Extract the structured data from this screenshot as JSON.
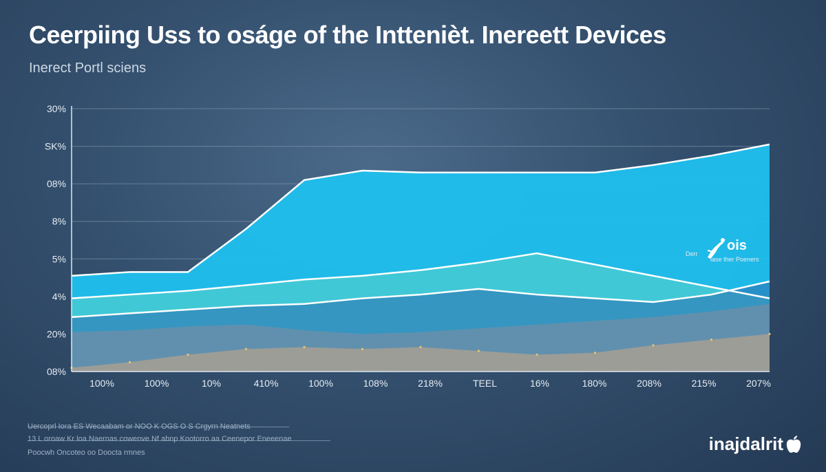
{
  "title": "Ceerpiing Uss to oságe of the Inttenièt. Inereett Devices",
  "subtitle": "Inerect Portl sciens",
  "chart_data": {
    "type": "area",
    "title": "Ceerpiing Uss to oságe of the Inttenièt. Inereett Devices",
    "subtitle": "Inerect Portl sciens",
    "y_tick_labels": [
      "30%",
      "SK%",
      "08%",
      "8%",
      "5%",
      "4%",
      "20%",
      "08%"
    ],
    "x_tick_labels": [
      "100%",
      "100%",
      "10%",
      "410%",
      "100%",
      "108%",
      "218%",
      "TEEL",
      "16%",
      "180%",
      "208%",
      "215%",
      "207%"
    ],
    "y_range": [
      0,
      7
    ],
    "grid": true,
    "legend": {
      "label": "ois",
      "small_left": "Derr",
      "small_right": "lase ther Poeners"
    },
    "series": [
      {
        "color": "#1fc0ee",
        "values": [
          2.55,
          2.65,
          2.65,
          3.8,
          5.1,
          5.35,
          5.3,
          5.3,
          5.3,
          5.3,
          5.5,
          5.75,
          6.05
        ]
      },
      {
        "color": "#55d0cc",
        "values": [
          1.95,
          2.05,
          2.15,
          2.3,
          2.45,
          2.55,
          2.7,
          2.9,
          3.15,
          2.85,
          2.55,
          2.25,
          1.95
        ]
      },
      {
        "color": "#2f78b4",
        "values": [
          1.45,
          1.55,
          1.65,
          1.75,
          1.8,
          1.95,
          2.05,
          2.2,
          2.05,
          1.95,
          1.85,
          2.05,
          2.4
        ]
      },
      {
        "color": "#7c8da3",
        "values": [
          1.05,
          1.1,
          1.2,
          1.25,
          1.1,
          1.0,
          1.05,
          1.15,
          1.25,
          1.35,
          1.45,
          1.6,
          1.8
        ]
      },
      {
        "color": "#c0a489",
        "values": [
          0.1,
          0.25,
          0.45,
          0.6,
          0.65,
          0.6,
          0.65,
          0.55,
          0.45,
          0.5,
          0.7,
          0.85,
          1.0
        ]
      }
    ]
  },
  "footer": {
    "line1": "Uercoprl Iora ES Wecaabam or NOO K OGS O S Crgyrn Neatnets",
    "line2": "13 L oroaw Kr loa Naernas cowenve Nf abnp Kootorro aa Ceenepor Eneeenae",
    "line3": "Poocwh Oncoteo oo Doocta rmnes",
    "brand": "inajdalrit"
  },
  "colors": {
    "background": "#34506e",
    "grid": "#8ea3b8",
    "outline": "#ffffff",
    "accent": "#1fc0ee"
  },
  "icons": {
    "brand": "apple-logo-icon",
    "legend": "leaping-figure-icon"
  }
}
